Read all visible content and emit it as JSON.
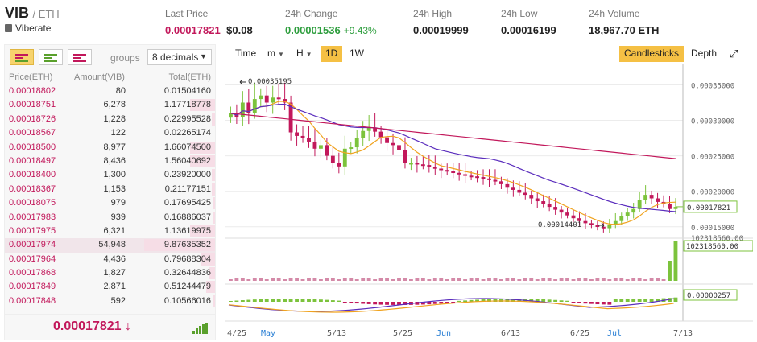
{
  "header": {
    "symbol": "VIB",
    "quote": "/ ETH",
    "name": "Viberate",
    "last_price_label": "Last Price",
    "last_price": "0.00017821",
    "last_price_usd": "$0.08",
    "change_label": "24h Change",
    "change": "0.00001536",
    "change_pct": "+9.43%",
    "high_label": "24h High",
    "high": "0.00019999",
    "low_label": "24h Low",
    "low": "0.00016199",
    "volume_label": "24h Volume",
    "volume": "18,967.70 ETH"
  },
  "orderbook": {
    "groups_label": "groups",
    "groups_value": "8 decimals",
    "col_price": "Price(ETH)",
    "col_amount": "Amount(VIB)",
    "col_total": "Total(ETH)",
    "rows": [
      {
        "price": "0.00018802",
        "amount": "80",
        "total": "0.01504160",
        "depth": 0
      },
      {
        "price": "0.00018751",
        "amount": "6,278",
        "total": "1.17718778",
        "depth": 0.35
      },
      {
        "price": "0.00018726",
        "amount": "1,228",
        "total": "0.22995528",
        "depth": 0.05
      },
      {
        "price": "0.00018567",
        "amount": "122",
        "total": "0.02265174",
        "depth": 0
      },
      {
        "price": "0.00018500",
        "amount": "8,977",
        "total": "1.66074500",
        "depth": 0.35
      },
      {
        "price": "0.00018497",
        "amount": "8,436",
        "total": "1.56040692",
        "depth": 0.35
      },
      {
        "price": "0.00018400",
        "amount": "1,300",
        "total": "0.23920000",
        "depth": 0.05
      },
      {
        "price": "0.00018367",
        "amount": "1,153",
        "total": "0.21177151",
        "depth": 0.05
      },
      {
        "price": "0.00018075",
        "amount": "979",
        "total": "0.17695425",
        "depth": 0.03
      },
      {
        "price": "0.00017983",
        "amount": "939",
        "total": "0.16886037",
        "depth": 0.03
      },
      {
        "price": "0.00017975",
        "amount": "6,321",
        "total": "1.13619975",
        "depth": 0.35
      },
      {
        "price": "0.00017974",
        "amount": "54,948",
        "total": "9.87635352",
        "depth": 1.0
      },
      {
        "price": "0.00017964",
        "amount": "4,436",
        "total": "0.79688304",
        "depth": 0.2
      },
      {
        "price": "0.00017868",
        "amount": "1,827",
        "total": "0.32644836",
        "depth": 0.08
      },
      {
        "price": "0.00017849",
        "amount": "2,871",
        "total": "0.51244479",
        "depth": 0.12
      },
      {
        "price": "0.00017848",
        "amount": "592",
        "total": "0.10566016",
        "depth": 0.02
      }
    ],
    "last_price": "0.00017821",
    "last_arrow": "↓"
  },
  "toolbar": {
    "time": "Time",
    "minute": "m",
    "hour": "H",
    "day": "1D",
    "week": "1W",
    "candlesticks": "Candlesticks",
    "depth": "Depth"
  },
  "chart_data": {
    "type": "candlestick",
    "y_ticks": [
      "0.00035000",
      "0.00030000",
      "0.00025000",
      "0.00020000",
      "0.00015000"
    ],
    "ylim": [
      0.000135,
      0.00038
    ],
    "current_price_tag": "0.00017821",
    "max_annotation": "0.00035195",
    "min_annotation": "0.00014401",
    "volume_tag": "102318560.00",
    "volume_tick": "102318560.00",
    "macd_tag": "0.00000257",
    "x_labels": [
      "4/25",
      "May",
      "5/13",
      "5/25",
      "Jun",
      "6/13",
      "6/25",
      "Jul",
      "7/13"
    ],
    "colors": {
      "up": "#7cc33c",
      "down": "#c2185b",
      "ma_short": "#f0a31f",
      "ma_long": "#5b2ebd",
      "ma_200": "#c2185b"
    }
  }
}
